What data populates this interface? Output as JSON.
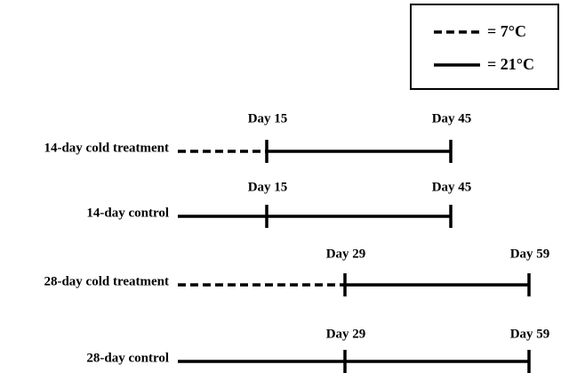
{
  "legend": {
    "items": [
      {
        "label": "= 7°C"
      },
      {
        "label": "= 21°C"
      }
    ]
  },
  "rows": [
    {
      "label": "14-day cold treatment",
      "markers": [
        "Day 15",
        "Day 45"
      ]
    },
    {
      "label": "14-day control",
      "markers": [
        "Day 15",
        "Day 45"
      ]
    },
    {
      "label": "28-day cold treatment",
      "markers": [
        "Day 29",
        "Day 59"
      ]
    },
    {
      "label": "28-day control",
      "markers": [
        "Day 29",
        "Day 59"
      ]
    }
  ]
}
